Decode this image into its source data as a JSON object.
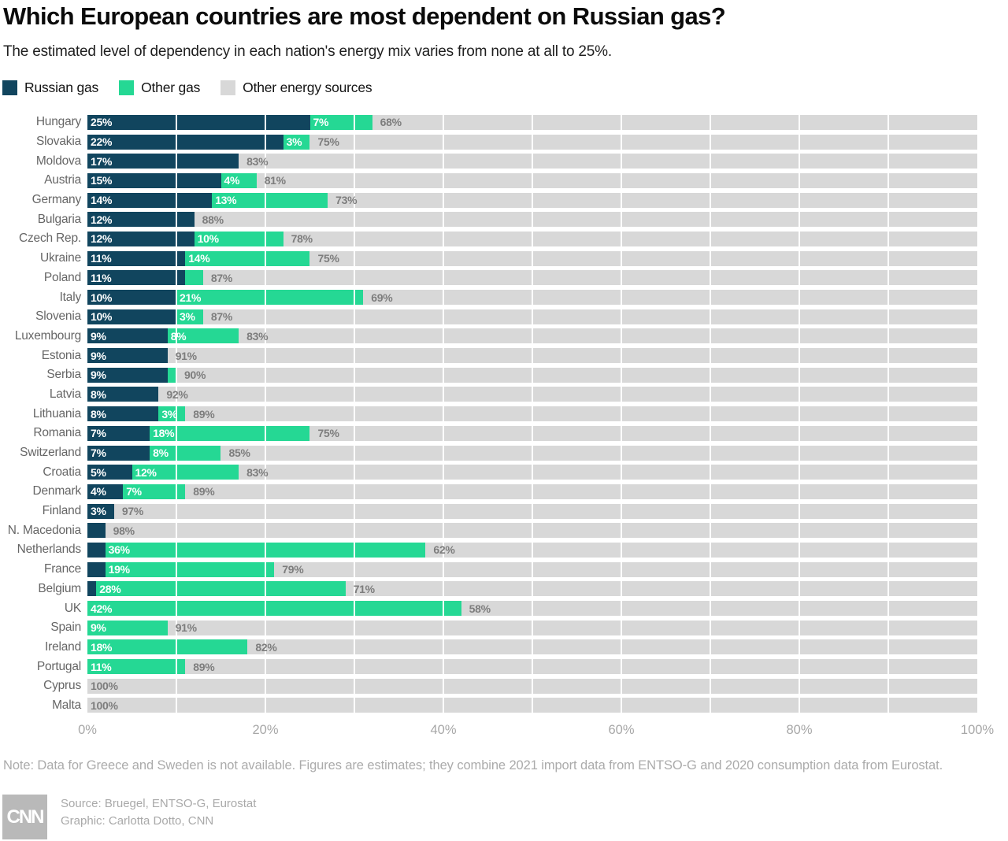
{
  "header": {
    "title": "Which European countries are most dependent on Russian gas?",
    "subtitle": "The estimated level of dependency in each nation's energy mix varies from none at all to 25%."
  },
  "legend": [
    {
      "label": "Russian gas",
      "color": "#11455e"
    },
    {
      "label": "Other gas",
      "color": "#25d894"
    },
    {
      "label": "Other energy sources",
      "color": "#d8d8d8"
    }
  ],
  "chart_data": {
    "type": "bar",
    "orientation": "horizontal",
    "stacked": true,
    "unit": "%",
    "xlim": [
      0,
      100
    ],
    "x_tick_labels": [
      "0%",
      "20%",
      "40%",
      "60%",
      "80%",
      "100%"
    ],
    "gridlines_every_pct": 10,
    "label_min_display_pct": 3,
    "categories": [
      "Hungary",
      "Slovakia",
      "Moldova",
      "Austria",
      "Germany",
      "Bulgaria",
      "Czech Rep.",
      "Ukraine",
      "Poland",
      "Italy",
      "Slovenia",
      "Luxembourg",
      "Estonia",
      "Serbia",
      "Latvia",
      "Lithuania",
      "Romania",
      "Switzerland",
      "Croatia",
      "Denmark",
      "Finland",
      "N. Macedonia",
      "Netherlands",
      "France",
      "Belgium",
      "UK",
      "Spain",
      "Ireland",
      "Portugal",
      "Cyprus",
      "Malta"
    ],
    "series": [
      {
        "name": "Russian gas",
        "color": "#11455e",
        "values": [
          25,
          22,
          17,
          15,
          14,
          12,
          12,
          11,
          11,
          10,
          10,
          9,
          9,
          9,
          8,
          8,
          7,
          7,
          5,
          4,
          3,
          2,
          2,
          2,
          1,
          0,
          0,
          0,
          0,
          0,
          0
        ]
      },
      {
        "name": "Other gas",
        "color": "#25d894",
        "values": [
          7,
          3,
          0,
          4,
          13,
          0,
          10,
          14,
          2,
          21,
          3,
          8,
          0,
          1,
          0,
          3,
          18,
          8,
          12,
          7,
          0,
          0,
          36,
          19,
          28,
          42,
          9,
          18,
          11,
          0,
          0
        ]
      },
      {
        "name": "Other energy sources",
        "color": "#d8d8d8",
        "values": [
          68,
          75,
          83,
          81,
          73,
          88,
          78,
          75,
          87,
          69,
          87,
          83,
          91,
          90,
          92,
          89,
          75,
          85,
          83,
          89,
          97,
          98,
          62,
          79,
          71,
          58,
          91,
          82,
          89,
          100,
          100
        ]
      }
    ]
  },
  "note": "Note: Data for Greece and Sweden is not available. Figures are estimates; they combine 2021 import data from ENTSO-G and 2020 consumption data from Eurostat.",
  "footer": {
    "logo": "CNN",
    "source": "Source: Bruegel, ENTSO-G, Eurostat",
    "graphic": "Graphic: Carlotta Dotto, CNN"
  }
}
